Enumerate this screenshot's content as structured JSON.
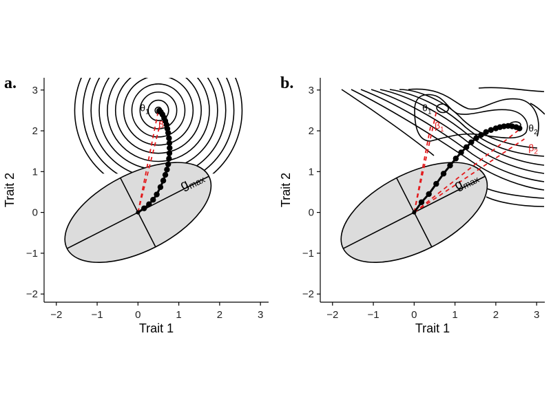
{
  "chart_data": [
    {
      "type": "scatter",
      "panel_label": "a.",
      "xlabel": "Trait 1",
      "ylabel": "Trait 2",
      "xlim": [
        -2.3,
        3.2
      ],
      "ylim": [
        -2.2,
        3.3
      ],
      "xticks": [
        "−2",
        "−1",
        "0",
        "1",
        "2",
        "3"
      ],
      "yticks": [
        "−2",
        "−1",
        "0",
        "1",
        "2",
        "3"
      ],
      "tick_values": [
        -2,
        -1,
        0,
        1,
        2,
        3
      ],
      "g_matrix_ellipse": {
        "center": [
          0,
          0
        ],
        "semi_major": 1.95,
        "semi_minor": 0.95,
        "angle_deg": 27
      },
      "gmax_label": {
        "main": "g",
        "sub": "max",
        "at": [
          1.1,
          0.55
        ]
      },
      "optimum": {
        "main": "θ",
        "sub": "1",
        "point": [
          0.5,
          2.5
        ],
        "label_at": [
          0.05,
          2.48
        ]
      },
      "beta_label": {
        "main": "β",
        "at": [
          0.5,
          2.08
        ]
      },
      "fitness_contours": {
        "center": [
          0.5,
          2.5
        ],
        "radii": [
          0.08,
          0.25,
          0.45,
          0.65,
          0.85,
          1.05,
          1.25,
          1.45,
          1.65,
          1.85,
          2.05
        ],
        "clip_ymin": 0.95
      },
      "trajectory": [
        [
          0,
          0
        ],
        [
          0.15,
          0.1
        ],
        [
          0.27,
          0.2
        ],
        [
          0.37,
          0.31
        ],
        [
          0.46,
          0.44
        ],
        [
          0.55,
          0.62
        ],
        [
          0.62,
          0.78
        ],
        [
          0.67,
          0.92
        ],
        [
          0.71,
          1.05
        ],
        [
          0.74,
          1.18
        ],
        [
          0.76,
          1.32
        ],
        [
          0.77,
          1.45
        ],
        [
          0.775,
          1.58
        ],
        [
          0.77,
          1.7
        ],
        [
          0.76,
          1.82
        ],
        [
          0.74,
          1.95
        ],
        [
          0.72,
          2.05
        ],
        [
          0.7,
          2.15
        ],
        [
          0.67,
          2.24
        ],
        [
          0.64,
          2.32
        ],
        [
          0.6,
          2.4
        ],
        [
          0.56,
          2.46
        ],
        [
          0.52,
          2.49
        ]
      ],
      "dashed_lines": [
        [
          [
            0,
            0
          ],
          [
            0.5,
            2.5
          ]
        ],
        [
          [
            0,
            0
          ],
          [
            0.55,
            2.2
          ]
        ]
      ],
      "colors": {
        "ellipse_fill": "#dcdcdc",
        "dashed": "#e31a1c",
        "trajectory": "#000000",
        "contour": "#000000"
      }
    },
    {
      "type": "scatter",
      "panel_label": "b.",
      "xlabel": "Trait 1",
      "ylabel": "Trait 2",
      "xlim": [
        -2.3,
        3.2
      ],
      "ylim": [
        -2.2,
        3.3
      ],
      "xticks": [
        "−2",
        "−1",
        "0",
        "1",
        "2",
        "3"
      ],
      "yticks": [
        "−2",
        "−1",
        "0",
        "1",
        "2",
        "3"
      ],
      "tick_values": [
        -2,
        -1,
        0,
        1,
        2,
        3
      ],
      "g_matrix_ellipse": {
        "center": [
          0,
          0
        ],
        "semi_major": 1.95,
        "semi_minor": 0.95,
        "angle_deg": 27
      },
      "gmax_label": {
        "main": "g",
        "sub": "max",
        "at": [
          1.05,
          0.55
        ]
      },
      "optimum_1": {
        "main": "θ",
        "sub": "1",
        "point": [
          0.7,
          2.45
        ],
        "label_at": [
          0.2,
          2.48
        ]
      },
      "optimum_2": {
        "main": "θ",
        "sub": "2",
        "point": [
          2.6,
          2.05
        ],
        "label_at": [
          2.8,
          1.98
        ]
      },
      "beta_1": {
        "main": "β",
        "sub": "1",
        "at": [
          0.5,
          2.05
        ]
      },
      "beta_2": {
        "main": "β",
        "sub": "2",
        "at": [
          2.8,
          1.5
        ]
      },
      "trajectory": [
        [
          0,
          0
        ],
        [
          0.18,
          0.25
        ],
        [
          0.36,
          0.45
        ],
        [
          0.54,
          0.7
        ],
        [
          0.72,
          0.95
        ],
        [
          0.88,
          1.15
        ],
        [
          1.02,
          1.32
        ],
        [
          1.15,
          1.47
        ],
        [
          1.28,
          1.6
        ],
        [
          1.4,
          1.72
        ],
        [
          1.52,
          1.82
        ],
        [
          1.64,
          1.9
        ],
        [
          1.76,
          1.97
        ],
        [
          1.88,
          2.02
        ],
        [
          2.0,
          2.06
        ],
        [
          2.1,
          2.09
        ],
        [
          2.2,
          2.11
        ],
        [
          2.3,
          2.12
        ],
        [
          2.4,
          2.11
        ],
        [
          2.5,
          2.09
        ],
        [
          2.58,
          2.06
        ]
      ],
      "dashed_lines": [
        [
          [
            0,
            0
          ],
          [
            0.55,
            2.5
          ]
        ],
        [
          [
            0,
            0
          ],
          [
            2.6,
            2.05
          ]
        ],
        [
          [
            0,
            0
          ],
          [
            0.4,
            2.1
          ]
        ],
        [
          [
            0,
            0
          ],
          [
            2.7,
            1.8
          ]
        ]
      ],
      "colors": {
        "ellipse_fill": "#dcdcdc",
        "dashed": "#e31a1c",
        "trajectory": "#000000",
        "contour": "#000000"
      }
    }
  ]
}
